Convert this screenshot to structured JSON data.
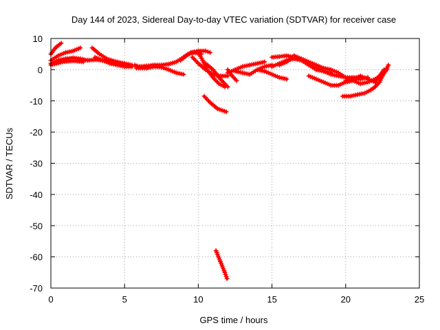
{
  "chart_data": {
    "type": "scatter",
    "title": "Day 144 of 2023, Sidereal Day-to-day VTEC variation (SDTVAR) for receiver case",
    "xlabel": "GPS time / hours",
    "ylabel": "SDTVAR / TECUs",
    "xlim": [
      0,
      25
    ],
    "ylim": [
      -70,
      10
    ],
    "x_ticks": [
      0,
      5,
      10,
      15,
      20,
      25
    ],
    "y_ticks": [
      10,
      0,
      -10,
      -20,
      -30,
      -40,
      -50,
      -60,
      -70
    ],
    "grid": true,
    "marker": "plus",
    "series": [
      {
        "name": "SDTVAR",
        "color": "#ff0000",
        "tracks": [
          [
            [
              0.0,
              5.0
            ],
            [
              0.3,
              7.0
            ],
            [
              0.7,
              8.5
            ]
          ],
          [
            [
              0.0,
              3.0
            ],
            [
              0.5,
              4.5
            ],
            [
              1.0,
              5.5
            ],
            [
              1.5,
              6.0
            ],
            [
              2.0,
              7.0
            ]
          ],
          [
            [
              0.0,
              2.0
            ],
            [
              0.5,
              3.0
            ],
            [
              1.0,
              3.5
            ],
            [
              1.5,
              3.8
            ],
            [
              2.0,
              3.5
            ],
            [
              2.5,
              3.0
            ],
            [
              3.0,
              3.2
            ],
            [
              3.5,
              3.0
            ],
            [
              4.0,
              2.5
            ],
            [
              4.5,
              2.0
            ],
            [
              5.0,
              1.5
            ],
            [
              5.5,
              1.0
            ]
          ],
          [
            [
              0.0,
              1.5
            ],
            [
              0.8,
              2.5
            ],
            [
              1.5,
              2.8
            ],
            [
              2.2,
              2.5
            ]
          ],
          [
            [
              2.8,
              7.0
            ],
            [
              3.3,
              5.0
            ],
            [
              3.8,
              3.5
            ],
            [
              4.5,
              2.5
            ],
            [
              5.0,
              2.0
            ],
            [
              5.5,
              1.5
            ]
          ],
          [
            [
              3.0,
              4.0
            ],
            [
              3.5,
              3.0
            ],
            [
              4.0,
              2.0
            ],
            [
              4.5,
              1.5
            ],
            [
              5.0,
              1.0
            ],
            [
              5.5,
              1.0
            ]
          ],
          [
            [
              5.7,
              1.5
            ],
            [
              6.0,
              1.0
            ],
            [
              6.5,
              1.2
            ],
            [
              7.0,
              1.5
            ],
            [
              7.5,
              1.5
            ],
            [
              8.0,
              1.8
            ],
            [
              8.5,
              2.5
            ],
            [
              9.0,
              4.0
            ],
            [
              9.3,
              5.0
            ],
            [
              9.7,
              5.5
            ],
            [
              10.2,
              5.0
            ]
          ],
          [
            [
              5.8,
              0.5
            ],
            [
              6.5,
              0.5
            ],
            [
              7.0,
              1.0
            ],
            [
              7.5,
              0.8
            ],
            [
              8.0,
              0.0
            ],
            [
              8.5,
              -1.0
            ],
            [
              9.0,
              -1.5
            ]
          ],
          [
            [
              8.8,
              3.0
            ],
            [
              9.2,
              4.5
            ],
            [
              9.5,
              5.5
            ],
            [
              10.0,
              6.0
            ],
            [
              10.5,
              6.0
            ],
            [
              10.8,
              5.5
            ]
          ],
          [
            [
              9.6,
              4.0
            ],
            [
              10.0,
              2.0
            ],
            [
              10.5,
              0.0
            ],
            [
              11.0,
              -1.5
            ],
            [
              11.5,
              -2.0
            ],
            [
              12.0,
              -2.0
            ]
          ],
          [
            [
              10.0,
              5.5
            ],
            [
              10.3,
              3.0
            ],
            [
              10.6,
              0.0
            ],
            [
              11.0,
              -2.5
            ],
            [
              11.4,
              -4.5
            ],
            [
              11.8,
              -5.5
            ]
          ],
          [
            [
              10.5,
              2.0
            ],
            [
              11.0,
              0.0
            ],
            [
              11.5,
              -3.0
            ],
            [
              12.0,
              -5.5
            ]
          ],
          [
            [
              10.4,
              -8.5
            ],
            [
              10.8,
              -10.5
            ],
            [
              11.3,
              -12.5
            ],
            [
              11.9,
              -13.5
            ]
          ],
          [
            [
              11.2,
              -58.0
            ],
            [
              11.5,
              -61.5
            ],
            [
              11.8,
              -65.0
            ],
            [
              11.95,
              -67.0
            ]
          ],
          [
            [
              12.0,
              0.0
            ],
            [
              12.3,
              -2.0
            ],
            [
              12.6,
              -3.5
            ]
          ],
          [
            [
              12.0,
              -1.0
            ],
            [
              12.5,
              0.0
            ],
            [
              13.0,
              1.0
            ],
            [
              13.5,
              1.5
            ],
            [
              14.0,
              2.0
            ],
            [
              14.5,
              2.5
            ]
          ],
          [
            [
              12.5,
              -0.5
            ],
            [
              13.0,
              -1.0
            ],
            [
              13.5,
              -1.5
            ],
            [
              14.0,
              0.0
            ],
            [
              14.5,
              1.0
            ],
            [
              15.0,
              1.5
            ]
          ],
          [
            [
              14.0,
              0.0
            ],
            [
              14.5,
              -0.5
            ],
            [
              15.0,
              -1.5
            ],
            [
              15.5,
              -2.5
            ],
            [
              16.0,
              -3.0
            ]
          ],
          [
            [
              15.0,
              1.0
            ],
            [
              15.5,
              2.0
            ],
            [
              16.0,
              3.0
            ],
            [
              16.5,
              3.5
            ],
            [
              17.0,
              3.0
            ],
            [
              17.5,
              1.5
            ],
            [
              18.0,
              0.5
            ],
            [
              18.5,
              -0.5
            ],
            [
              19.0,
              -1.5
            ],
            [
              19.5,
              -2.0
            ],
            [
              20.0,
              -2.5
            ],
            [
              20.5,
              -2.5
            ],
            [
              21.0,
              -2.5
            ]
          ],
          [
            [
              15.0,
              4.0
            ],
            [
              15.5,
              4.2
            ],
            [
              16.0,
              4.5
            ],
            [
              16.5,
              4.0
            ],
            [
              17.0,
              3.0
            ],
            [
              17.5,
              1.5
            ],
            [
              18.0,
              0.0
            ],
            [
              18.5,
              -0.5
            ],
            [
              19.0,
              -1.0
            ]
          ],
          [
            [
              15.5,
              1.5
            ],
            [
              16.0,
              2.5
            ],
            [
              16.5,
              4.5
            ],
            [
              17.0,
              3.5
            ],
            [
              17.5,
              2.5
            ],
            [
              18.0,
              1.5
            ],
            [
              18.5,
              0.5
            ],
            [
              19.0,
              0.0
            ],
            [
              19.5,
              -1.0
            ],
            [
              20.0,
              -2.5
            ],
            [
              20.5,
              -3.0
            ],
            [
              21.0,
              -3.0
            ],
            [
              21.5,
              -2.5
            ]
          ],
          [
            [
              17.5,
              -2.0
            ],
            [
              18.0,
              -3.0
            ],
            [
              18.5,
              -4.0
            ],
            [
              19.0,
              -5.0
            ],
            [
              19.5,
              -5.0
            ],
            [
              20.0,
              -4.0
            ],
            [
              20.5,
              -3.5
            ],
            [
              21.0,
              -4.5
            ],
            [
              21.5,
              -4.0
            ],
            [
              22.0,
              -3.0
            ],
            [
              22.5,
              -1.5
            ],
            [
              22.8,
              0.0
            ]
          ],
          [
            [
              19.8,
              -8.5
            ],
            [
              20.3,
              -8.5
            ],
            [
              20.8,
              -8.0
            ],
            [
              21.3,
              -7.5
            ],
            [
              21.7,
              -6.5
            ],
            [
              22.0,
              -5.5
            ],
            [
              22.3,
              -4.0
            ],
            [
              22.5,
              -2.0
            ],
            [
              22.8,
              0.5
            ],
            [
              22.9,
              1.5
            ]
          ],
          [
            [
              20.0,
              -3.5
            ],
            [
              20.5,
              -3.0
            ],
            [
              21.0,
              -2.0
            ],
            [
              21.5,
              -3.0
            ],
            [
              22.0,
              -4.0
            ],
            [
              22.3,
              -2.0
            ],
            [
              22.6,
              0.0
            ]
          ]
        ]
      }
    ]
  }
}
